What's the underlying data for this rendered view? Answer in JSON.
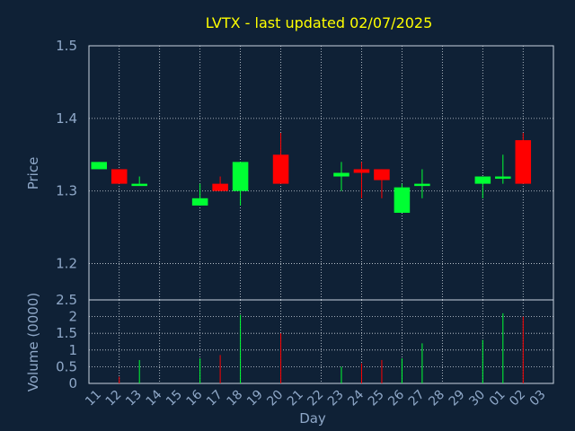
{
  "chart_data": [
    {
      "type": "candlestick",
      "title": "LVTX - last updated 02/07/2025",
      "ylabel": "Price",
      "ylim": [
        1.15,
        1.5
      ],
      "yticks": [
        "1.2",
        "1.3",
        "1.4",
        "1.5"
      ],
      "x_tick_labels": [
        "11",
        "12",
        "13",
        "14",
        "15",
        "16",
        "17",
        "18",
        "19",
        "20",
        "21",
        "22",
        "23",
        "24",
        "25",
        "26",
        "27",
        "28",
        "29",
        "30",
        "01",
        "02",
        "03"
      ],
      "colors": {
        "up": "#00ff33",
        "down": "#ff0000",
        "grid": "#d0d8e0",
        "background": "#0f2136"
      },
      "grid": true,
      "candles": [
        {
          "day": "11",
          "open": 1.33,
          "high": 1.34,
          "low": 1.33,
          "close": 1.34
        },
        {
          "day": "12",
          "open": 1.33,
          "high": 1.33,
          "low": 1.31,
          "close": 1.31
        },
        {
          "day": "13",
          "open": 1.31,
          "high": 1.32,
          "low": 1.31,
          "close": 1.31
        },
        {
          "day": "16",
          "open": 1.28,
          "high": 1.31,
          "low": 1.28,
          "close": 1.29
        },
        {
          "day": "17",
          "open": 1.31,
          "high": 1.32,
          "low": 1.3,
          "close": 1.3
        },
        {
          "day": "18",
          "open": 1.3,
          "high": 1.34,
          "low": 1.28,
          "close": 1.34
        },
        {
          "day": "20",
          "open": 1.35,
          "high": 1.38,
          "low": 1.31,
          "close": 1.31
        },
        {
          "day": "23",
          "open": 1.32,
          "high": 1.34,
          "low": 1.3,
          "close": 1.325
        },
        {
          "day": "24",
          "open": 1.33,
          "high": 1.34,
          "low": 1.29,
          "close": 1.325
        },
        {
          "day": "25",
          "open": 1.33,
          "high": 1.33,
          "low": 1.29,
          "close": 1.315
        },
        {
          "day": "26",
          "open": 1.27,
          "high": 1.31,
          "low": 1.27,
          "close": 1.305
        },
        {
          "day": "27",
          "open": 1.31,
          "high": 1.33,
          "low": 1.29,
          "close": 1.31
        },
        {
          "day": "30",
          "open": 1.31,
          "high": 1.32,
          "low": 1.29,
          "close": 1.32
        },
        {
          "day": "01",
          "open": 1.32,
          "high": 1.35,
          "low": 1.31,
          "close": 1.32
        },
        {
          "day": "02",
          "open": 1.37,
          "high": 1.38,
          "low": 1.31,
          "close": 1.31
        }
      ]
    },
    {
      "type": "bar",
      "xlabel": "Day",
      "ylabel": "Volume (0000)",
      "ylim": [
        0,
        2.5
      ],
      "yticks": [
        "0",
        "0.5",
        "1",
        "1.5",
        "2",
        "2.5"
      ],
      "bars": [
        {
          "day": "12",
          "value": 0.2,
          "direction": "down"
        },
        {
          "day": "13",
          "value": 0.7,
          "direction": "up"
        },
        {
          "day": "16",
          "value": 0.75,
          "direction": "up"
        },
        {
          "day": "17",
          "value": 0.85,
          "direction": "down"
        },
        {
          "day": "18",
          "value": 2.05,
          "direction": "up"
        },
        {
          "day": "20",
          "value": 1.5,
          "direction": "down"
        },
        {
          "day": "23",
          "value": 0.5,
          "direction": "up"
        },
        {
          "day": "24",
          "value": 0.6,
          "direction": "down"
        },
        {
          "day": "25",
          "value": 0.7,
          "direction": "down"
        },
        {
          "day": "26",
          "value": 0.75,
          "direction": "up"
        },
        {
          "day": "27",
          "value": 1.2,
          "direction": "up"
        },
        {
          "day": "30",
          "value": 1.3,
          "direction": "up"
        },
        {
          "day": "01",
          "value": 2.1,
          "direction": "up"
        },
        {
          "day": "02",
          "value": 2.0,
          "direction": "down"
        }
      ]
    }
  ]
}
